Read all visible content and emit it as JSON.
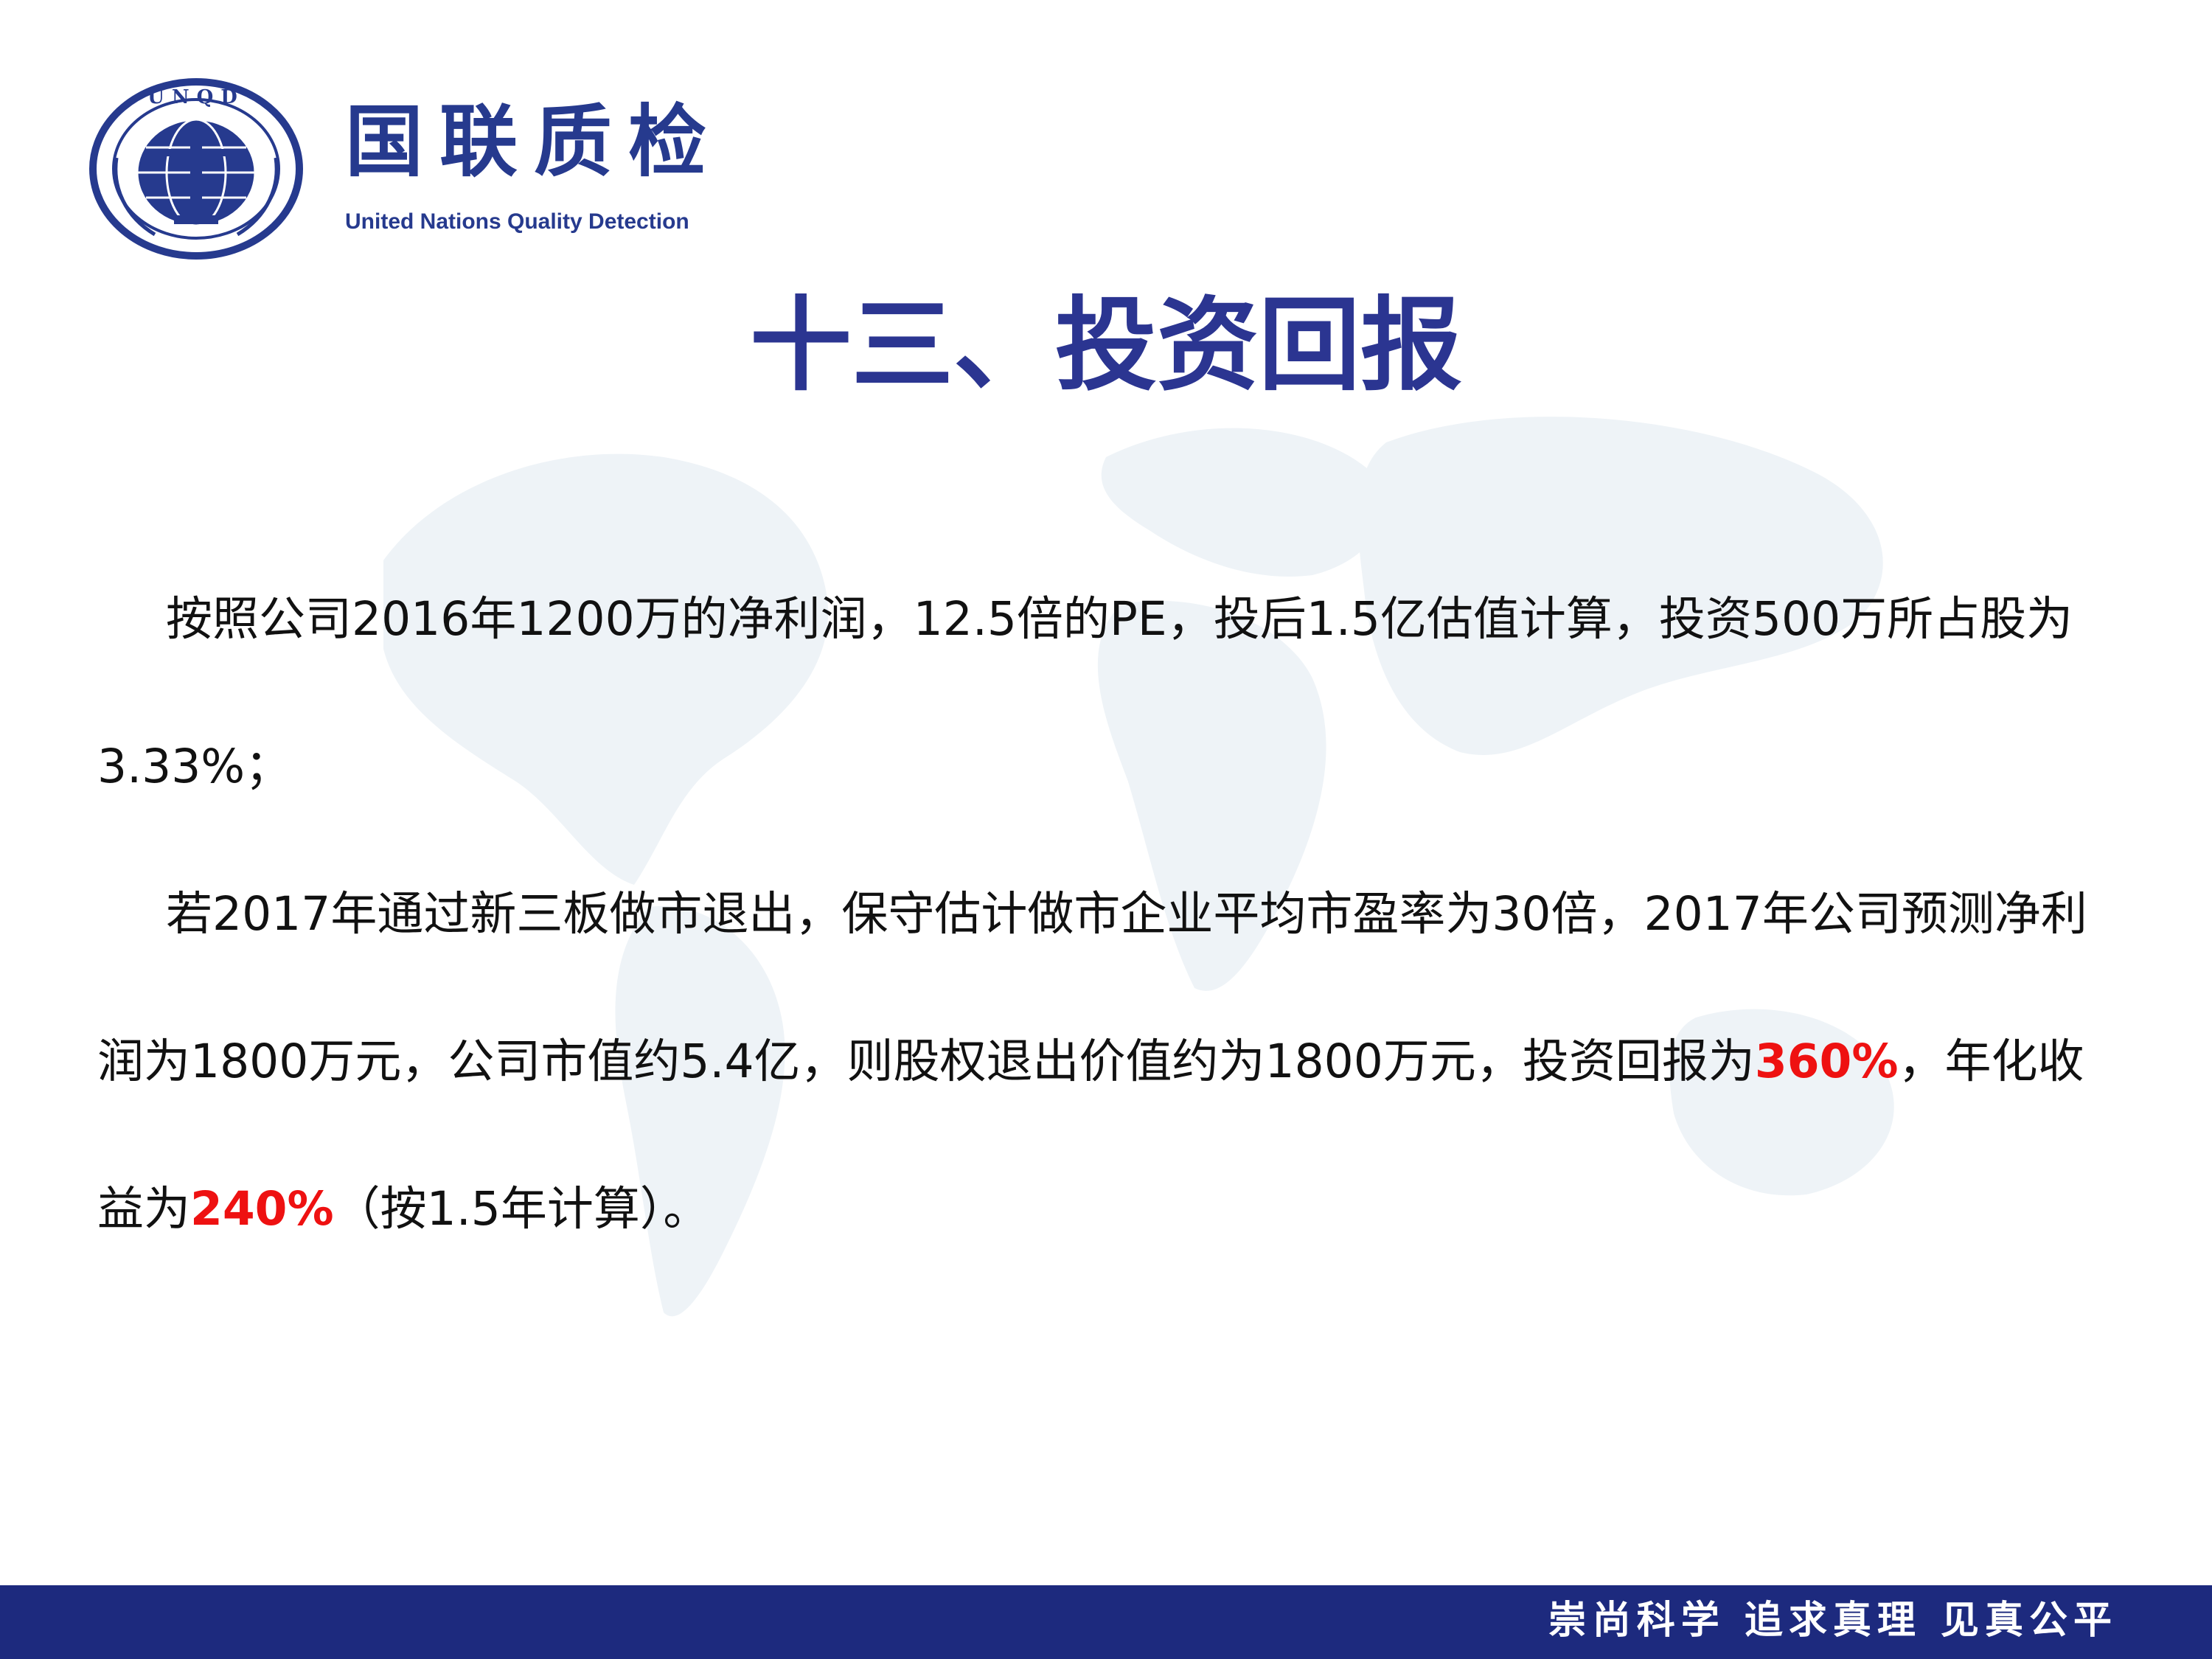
{
  "logo": {
    "name_cn": "国联质检",
    "name_en": "United Nations Quality Detection",
    "emblem_text": "UNQD"
  },
  "title": "十三、投资回报",
  "paragraphs": [
    {
      "text": "按照公司2016年1200万的净利润，12.5倍的PE，投后1.5亿估值计算，投资500万所占股为3.33%；"
    },
    {
      "before": "若2017年通过新三板做市退出，保守估计做市企业平均市盈率为30倍，2017年公司预测净利润为1800万元，公司市值约5.4亿，则股权退出价值约为1800万元，投资回报为",
      "highlight_1": "360%",
      "middle": "，年化收益为",
      "highlight_2": "240%",
      "after": "（按1.5年计算）。"
    }
  ],
  "footer": {
    "slogan": "崇尚科学 追求真理 见真公平"
  },
  "colors": {
    "brand_blue": "#263a8e",
    "footer_blue": "#1d2a7e",
    "highlight_red": "#ee1111"
  }
}
